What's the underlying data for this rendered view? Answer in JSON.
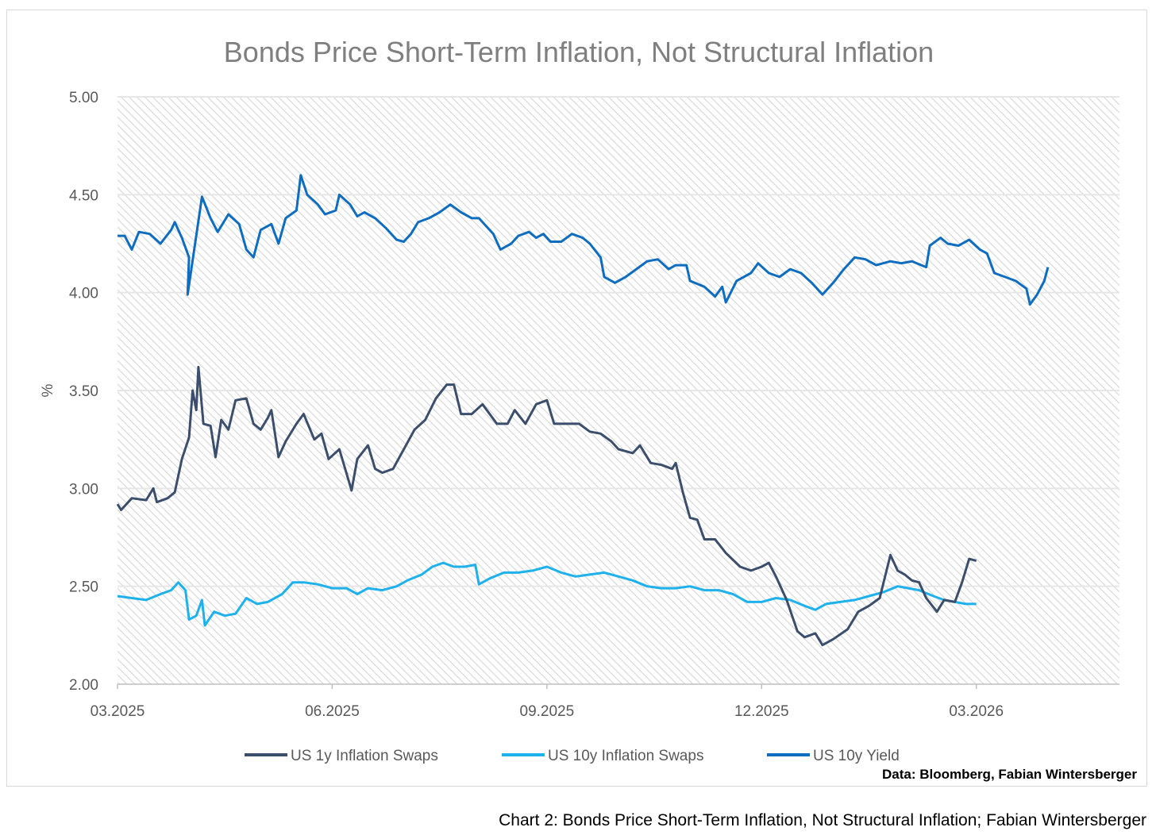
{
  "chart_data": {
    "type": "line",
    "title": "Bonds Price Short-Term Inflation, Not Structural Inflation",
    "xlabel": "",
    "ylabel": "%",
    "x_unit": "months since 03.2025",
    "xlim": [
      0,
      14
    ],
    "ylim": [
      2.0,
      5.0
    ],
    "grid": true,
    "legend_position": "bottom",
    "x_ticks": [
      {
        "value": 0,
        "label": "03.2025"
      },
      {
        "value": 3,
        "label": "06.2025"
      },
      {
        "value": 6,
        "label": "09.2025"
      },
      {
        "value": 9,
        "label": "12.2025"
      },
      {
        "value": 12,
        "label": "03.2026"
      }
    ],
    "y_ticks": [
      {
        "value": 2.0,
        "label": "2.00"
      },
      {
        "value": 2.5,
        "label": "2.50"
      },
      {
        "value": 3.0,
        "label": "3.00"
      },
      {
        "value": 3.5,
        "label": "3.50"
      },
      {
        "value": 4.0,
        "label": "4.00"
      },
      {
        "value": 4.5,
        "label": "4.50"
      },
      {
        "value": 5.0,
        "label": "5.00"
      }
    ],
    "series": [
      {
        "name": "US 1y Inflation Swaps",
        "color": "#3b4e6b",
        "points": [
          [
            0,
            2.92
          ],
          [
            0.05,
            2.89
          ],
          [
            0.2,
            2.95
          ],
          [
            0.4,
            2.94
          ],
          [
            0.5,
            3.0
          ],
          [
            0.55,
            2.93
          ],
          [
            0.7,
            2.95
          ],
          [
            0.8,
            2.98
          ],
          [
            0.9,
            3.15
          ],
          [
            1.0,
            3.26
          ],
          [
            1.05,
            3.5
          ],
          [
            1.1,
            3.4
          ],
          [
            1.13,
            3.62
          ],
          [
            1.2,
            3.33
          ],
          [
            1.3,
            3.32
          ],
          [
            1.37,
            3.16
          ],
          [
            1.45,
            3.35
          ],
          [
            1.55,
            3.3
          ],
          [
            1.65,
            3.45
          ],
          [
            1.8,
            3.46
          ],
          [
            1.9,
            3.33
          ],
          [
            2.0,
            3.3
          ],
          [
            2.1,
            3.36
          ],
          [
            2.15,
            3.4
          ],
          [
            2.25,
            3.16
          ],
          [
            2.35,
            3.24
          ],
          [
            2.5,
            3.33
          ],
          [
            2.6,
            3.38
          ],
          [
            2.75,
            3.25
          ],
          [
            2.85,
            3.28
          ],
          [
            2.95,
            3.15
          ],
          [
            3.1,
            3.2
          ],
          [
            3.27,
            2.99
          ],
          [
            3.35,
            3.15
          ],
          [
            3.5,
            3.22
          ],
          [
            3.6,
            3.1
          ],
          [
            3.7,
            3.08
          ],
          [
            3.85,
            3.1
          ],
          [
            4.0,
            3.2
          ],
          [
            4.15,
            3.3
          ],
          [
            4.3,
            3.35
          ],
          [
            4.45,
            3.46
          ],
          [
            4.6,
            3.53
          ],
          [
            4.7,
            3.53
          ],
          [
            4.8,
            3.38
          ],
          [
            4.95,
            3.38
          ],
          [
            5.1,
            3.43
          ],
          [
            5.3,
            3.33
          ],
          [
            5.45,
            3.33
          ],
          [
            5.55,
            3.4
          ],
          [
            5.7,
            3.33
          ],
          [
            5.85,
            3.43
          ],
          [
            6.0,
            3.45
          ],
          [
            6.1,
            3.33
          ],
          [
            6.3,
            3.33
          ],
          [
            6.45,
            3.33
          ],
          [
            6.6,
            3.29
          ],
          [
            6.75,
            3.28
          ],
          [
            6.9,
            3.24
          ],
          [
            7.0,
            3.2
          ],
          [
            7.2,
            3.18
          ],
          [
            7.3,
            3.22
          ],
          [
            7.45,
            3.13
          ],
          [
            7.6,
            3.12
          ],
          [
            7.75,
            3.1
          ],
          [
            7.8,
            3.13
          ],
          [
            7.9,
            2.98
          ],
          [
            8.0,
            2.85
          ],
          [
            8.1,
            2.84
          ],
          [
            8.2,
            2.74
          ],
          [
            8.35,
            2.74
          ],
          [
            8.5,
            2.67
          ],
          [
            8.7,
            2.6
          ],
          [
            8.85,
            2.58
          ],
          [
            9.0,
            2.6
          ],
          [
            9.1,
            2.62
          ],
          [
            9.2,
            2.55
          ],
          [
            9.35,
            2.43
          ],
          [
            9.5,
            2.27
          ],
          [
            9.6,
            2.24
          ],
          [
            9.75,
            2.26
          ],
          [
            9.85,
            2.2
          ],
          [
            10.0,
            2.23
          ],
          [
            10.2,
            2.28
          ],
          [
            10.35,
            2.37
          ],
          [
            10.5,
            2.4
          ],
          [
            10.65,
            2.44
          ],
          [
            10.8,
            2.66
          ],
          [
            10.9,
            2.58
          ],
          [
            11.0,
            2.56
          ],
          [
            11.1,
            2.53
          ],
          [
            11.2,
            2.52
          ],
          [
            11.3,
            2.44
          ],
          [
            11.45,
            2.37
          ],
          [
            11.55,
            2.43
          ],
          [
            11.7,
            2.42
          ],
          [
            11.8,
            2.52
          ],
          [
            11.9,
            2.64
          ],
          [
            12.0,
            2.63
          ]
        ]
      },
      {
        "name": "US 10y Inflation Swaps",
        "color": "#1eb1eb",
        "points": [
          [
            0,
            2.45
          ],
          [
            0.2,
            2.44
          ],
          [
            0.4,
            2.43
          ],
          [
            0.6,
            2.46
          ],
          [
            0.75,
            2.48
          ],
          [
            0.85,
            2.52
          ],
          [
            0.95,
            2.48
          ],
          [
            1.0,
            2.33
          ],
          [
            1.1,
            2.35
          ],
          [
            1.18,
            2.43
          ],
          [
            1.22,
            2.3
          ],
          [
            1.35,
            2.37
          ],
          [
            1.5,
            2.35
          ],
          [
            1.65,
            2.36
          ],
          [
            1.8,
            2.44
          ],
          [
            1.95,
            2.41
          ],
          [
            2.1,
            2.42
          ],
          [
            2.3,
            2.46
          ],
          [
            2.45,
            2.52
          ],
          [
            2.6,
            2.52
          ],
          [
            2.8,
            2.51
          ],
          [
            3.0,
            2.49
          ],
          [
            3.2,
            2.49
          ],
          [
            3.35,
            2.46
          ],
          [
            3.5,
            2.49
          ],
          [
            3.7,
            2.48
          ],
          [
            3.9,
            2.5
          ],
          [
            4.05,
            2.53
          ],
          [
            4.25,
            2.56
          ],
          [
            4.4,
            2.6
          ],
          [
            4.55,
            2.62
          ],
          [
            4.7,
            2.6
          ],
          [
            4.85,
            2.6
          ],
          [
            5.0,
            2.61
          ],
          [
            5.05,
            2.51
          ],
          [
            5.2,
            2.54
          ],
          [
            5.4,
            2.57
          ],
          [
            5.6,
            2.57
          ],
          [
            5.8,
            2.58
          ],
          [
            6.0,
            2.6
          ],
          [
            6.2,
            2.57
          ],
          [
            6.4,
            2.55
          ],
          [
            6.6,
            2.56
          ],
          [
            6.8,
            2.57
          ],
          [
            7.0,
            2.55
          ],
          [
            7.2,
            2.53
          ],
          [
            7.4,
            2.5
          ],
          [
            7.6,
            2.49
          ],
          [
            7.8,
            2.49
          ],
          [
            8.0,
            2.5
          ],
          [
            8.2,
            2.48
          ],
          [
            8.4,
            2.48
          ],
          [
            8.6,
            2.46
          ],
          [
            8.8,
            2.42
          ],
          [
            9.0,
            2.42
          ],
          [
            9.2,
            2.44
          ],
          [
            9.4,
            2.43
          ],
          [
            9.6,
            2.4
          ],
          [
            9.75,
            2.38
          ],
          [
            9.9,
            2.41
          ],
          [
            10.1,
            2.42
          ],
          [
            10.3,
            2.43
          ],
          [
            10.5,
            2.45
          ],
          [
            10.7,
            2.47
          ],
          [
            10.9,
            2.5
          ],
          [
            11.05,
            2.49
          ],
          [
            11.2,
            2.48
          ],
          [
            11.4,
            2.45
          ],
          [
            11.55,
            2.43
          ],
          [
            11.7,
            2.42
          ],
          [
            11.85,
            2.41
          ],
          [
            12.0,
            2.41
          ]
        ]
      },
      {
        "name": "US 10y Yield",
        "color": "#0e6dbf",
        "points": [
          [
            0,
            4.29
          ],
          [
            0.1,
            4.29
          ],
          [
            0.2,
            4.22
          ],
          [
            0.3,
            4.31
          ],
          [
            0.45,
            4.3
          ],
          [
            0.6,
            4.25
          ],
          [
            0.75,
            4.32
          ],
          [
            0.8,
            4.36
          ],
          [
            0.9,
            4.28
          ],
          [
            1.0,
            4.18
          ],
          [
            0.98,
            3.99
          ],
          [
            1.18,
            4.49
          ],
          [
            1.3,
            4.38
          ],
          [
            1.4,
            4.31
          ],
          [
            1.55,
            4.4
          ],
          [
            1.7,
            4.35
          ],
          [
            1.8,
            4.22
          ],
          [
            1.9,
            4.18
          ],
          [
            2.0,
            4.32
          ],
          [
            2.15,
            4.35
          ],
          [
            2.25,
            4.25
          ],
          [
            2.35,
            4.38
          ],
          [
            2.5,
            4.42
          ],
          [
            2.56,
            4.6
          ],
          [
            2.65,
            4.5
          ],
          [
            2.8,
            4.45
          ],
          [
            2.9,
            4.4
          ],
          [
            3.05,
            4.42
          ],
          [
            3.1,
            4.5
          ],
          [
            3.25,
            4.45
          ],
          [
            3.35,
            4.39
          ],
          [
            3.45,
            4.41
          ],
          [
            3.6,
            4.38
          ],
          [
            3.75,
            4.33
          ],
          [
            3.9,
            4.27
          ],
          [
            4.0,
            4.26
          ],
          [
            4.1,
            4.3
          ],
          [
            4.2,
            4.36
          ],
          [
            4.35,
            4.38
          ],
          [
            4.5,
            4.41
          ],
          [
            4.65,
            4.45
          ],
          [
            4.8,
            4.41
          ],
          [
            4.95,
            4.38
          ],
          [
            5.05,
            4.38
          ],
          [
            5.15,
            4.34
          ],
          [
            5.25,
            4.3
          ],
          [
            5.35,
            4.22
          ],
          [
            5.5,
            4.25
          ],
          [
            5.6,
            4.29
          ],
          [
            5.75,
            4.31
          ],
          [
            5.85,
            4.28
          ],
          [
            5.95,
            4.3
          ],
          [
            6.05,
            4.26
          ],
          [
            6.2,
            4.26
          ],
          [
            6.35,
            4.3
          ],
          [
            6.5,
            4.28
          ],
          [
            6.6,
            4.25
          ],
          [
            6.75,
            4.18
          ],
          [
            6.8,
            4.08
          ],
          [
            6.95,
            4.05
          ],
          [
            7.1,
            4.08
          ],
          [
            7.25,
            4.12
          ],
          [
            7.4,
            4.16
          ],
          [
            7.55,
            4.17
          ],
          [
            7.7,
            4.12
          ],
          [
            7.8,
            4.14
          ],
          [
            7.95,
            4.14
          ],
          [
            8.0,
            4.06
          ],
          [
            8.2,
            4.03
          ],
          [
            8.35,
            3.98
          ],
          [
            8.45,
            4.03
          ],
          [
            8.5,
            3.95
          ],
          [
            8.65,
            4.06
          ],
          [
            8.85,
            4.1
          ],
          [
            8.95,
            4.15
          ],
          [
            9.1,
            4.1
          ],
          [
            9.25,
            4.08
          ],
          [
            9.4,
            4.12
          ],
          [
            9.55,
            4.1
          ],
          [
            9.7,
            4.05
          ],
          [
            9.85,
            3.99
          ],
          [
            10.0,
            4.05
          ],
          [
            10.15,
            4.12
          ],
          [
            10.3,
            4.18
          ],
          [
            10.45,
            4.17
          ],
          [
            10.6,
            4.14
          ],
          [
            10.8,
            4.16
          ],
          [
            10.95,
            4.15
          ],
          [
            11.1,
            4.16
          ],
          [
            11.3,
            4.13
          ],
          [
            11.35,
            4.24
          ],
          [
            11.5,
            4.28
          ],
          [
            11.6,
            4.25
          ],
          [
            11.75,
            4.24
          ],
          [
            11.9,
            4.27
          ],
          [
            12.05,
            4.22
          ],
          [
            12.15,
            4.2
          ],
          [
            12.25,
            4.1
          ],
          [
            12.4,
            4.08
          ],
          [
            12.55,
            4.06
          ],
          [
            12.7,
            4.02
          ],
          [
            12.75,
            3.94
          ],
          [
            12.85,
            3.99
          ],
          [
            12.95,
            4.06
          ],
          [
            13.0,
            4.13
          ]
        ]
      }
    ],
    "annotations": [
      "Data: Bloomberg, Fabian Wintersberger"
    ]
  },
  "caption": "Chart 2: Bonds Price Short-Term Inflation, Not Structural Inflation; Fabian Wintersberger"
}
